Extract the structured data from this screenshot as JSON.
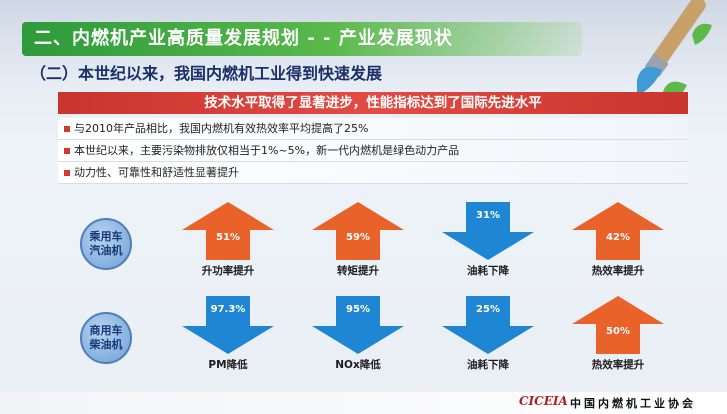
{
  "header": {
    "title": "二、内燃机产业高质量发展规划 - - 产业发展现状",
    "subtitle": "（二）本世纪以来，我国内燃机工业得到快速发展"
  },
  "banner": "技术水平取得了显著进步，性能指标达到了国际先进水平",
  "bullets": [
    "与2010年产品相比，我国内燃机有效热效率平均提高了25%",
    "本世纪以来，主要污染物排放仅相当于1%~5%，新一代内燃机是绿色动力产品",
    "动力性、可靠性和舒适性显著提升"
  ],
  "rows": [
    {
      "label_line1": "乘用车",
      "label_line2": "汽油机",
      "items": [
        {
          "value": "51%",
          "caption": "升功率提升",
          "direction": "up",
          "color": "#e8622a"
        },
        {
          "value": "59%",
          "caption": "转矩提升",
          "direction": "up",
          "color": "#e8622a"
        },
        {
          "value": "31%",
          "caption": "油耗下降",
          "direction": "down",
          "color": "#1f86d3"
        },
        {
          "value": "42%",
          "caption": "热效率提升",
          "direction": "up",
          "color": "#e8622a"
        }
      ]
    },
    {
      "label_line1": "商用车",
      "label_line2": "柴油机",
      "items": [
        {
          "value": "97.3%",
          "caption": "PM降低",
          "direction": "down",
          "color": "#1f86d3"
        },
        {
          "value": "95%",
          "caption": "NOx降低",
          "direction": "down",
          "color": "#1f86d3"
        },
        {
          "value": "25%",
          "caption": "油耗下降",
          "direction": "down",
          "color": "#1f86d3"
        },
        {
          "value": "50%",
          "caption": "热效率提升",
          "direction": "up",
          "color": "#e8622a"
        }
      ]
    }
  ],
  "footer": {
    "logo": "CICEIA",
    "org": "中国内燃机工业协会"
  }
}
